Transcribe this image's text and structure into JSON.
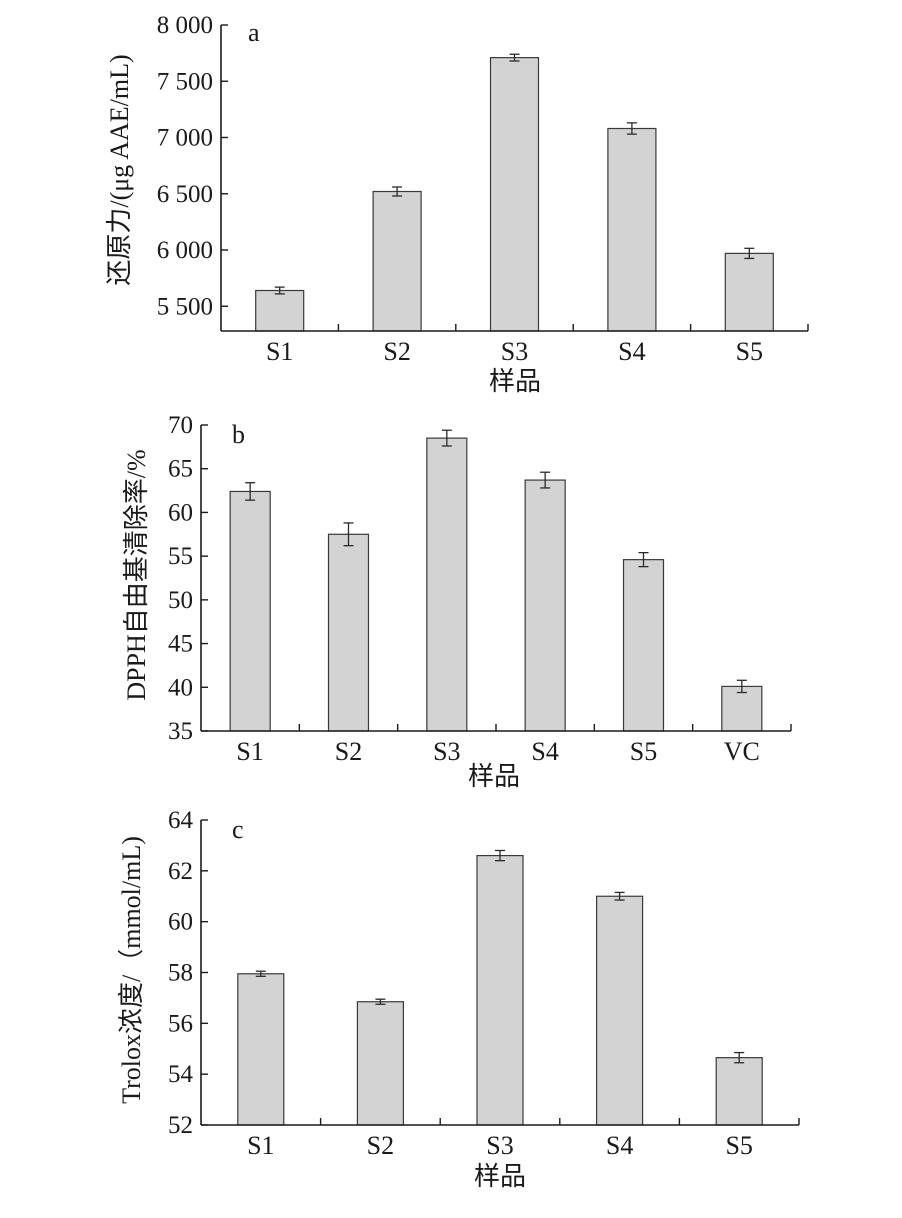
{
  "chart_data": [
    {
      "type": "bar",
      "panel_label": "a",
      "categories": [
        "S1",
        "S2",
        "S3",
        "S4",
        "S5"
      ],
      "values": [
        5640,
        6520,
        7710,
        7080,
        5970
      ],
      "errors": [
        30,
        40,
        30,
        50,
        45
      ],
      "xlabel": "样品",
      "ylabel": "还原力/(μg AAE/mL)",
      "ylim": [
        5280,
        8000
      ],
      "yticks": [
        5500,
        6000,
        6500,
        7000,
        7500,
        8000
      ],
      "ytick_labels": [
        "5 500",
        "6 000",
        "6 500",
        "7 000",
        "7 500",
        "8 000"
      ],
      "grid": false,
      "bar_color": "#d3d3d3"
    },
    {
      "type": "bar",
      "panel_label": "b",
      "categories": [
        "S1",
        "S2",
        "S3",
        "S4",
        "S5",
        "VC"
      ],
      "values": [
        62.4,
        57.5,
        68.5,
        63.7,
        54.6,
        40.1
      ],
      "errors": [
        1.0,
        1.3,
        0.9,
        0.9,
        0.8,
        0.7
      ],
      "xlabel": "样品",
      "ylabel": "DPPH自由基清除率/%",
      "ylim": [
        35,
        70
      ],
      "yticks": [
        35,
        40,
        45,
        50,
        55,
        60,
        65,
        70
      ],
      "ytick_labels": [
        "35",
        "40",
        "45",
        "50",
        "55",
        "60",
        "65",
        "70"
      ],
      "grid": false,
      "bar_color": "#d3d3d3"
    },
    {
      "type": "bar",
      "panel_label": "c",
      "categories": [
        "S1",
        "S2",
        "S3",
        "S4",
        "S5"
      ],
      "values": [
        57.95,
        56.85,
        62.6,
        61.0,
        54.65
      ],
      "errors": [
        0.1,
        0.1,
        0.2,
        0.15,
        0.2
      ],
      "xlabel": "样品",
      "ylabel": "Trolox浓度/（mmol/mL)",
      "ylim": [
        52,
        64
      ],
      "yticks": [
        52,
        54,
        56,
        58,
        60,
        62,
        64
      ],
      "ytick_labels": [
        "52",
        "54",
        "56",
        "58",
        "60",
        "62",
        "64"
      ],
      "grid": false,
      "bar_color": "#d3d3d3"
    }
  ]
}
